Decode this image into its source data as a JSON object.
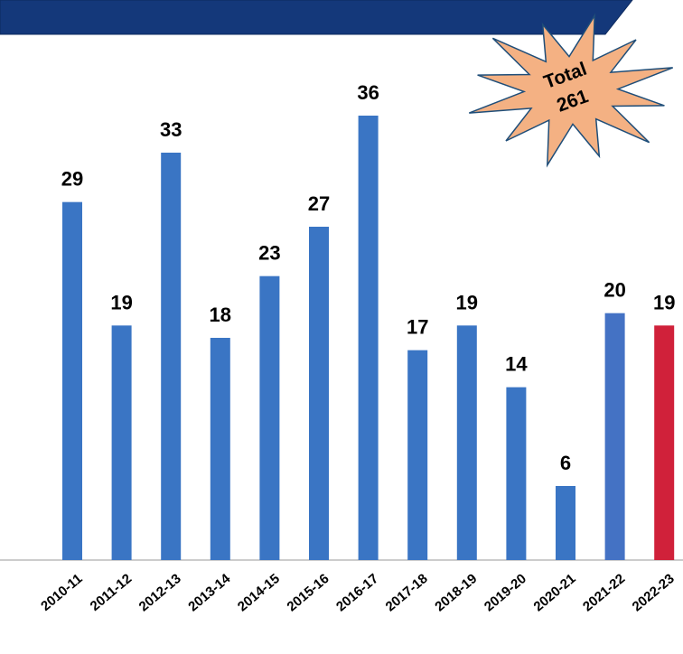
{
  "chart_data": {
    "type": "bar",
    "categories": [
      "2010-11",
      "2011-12",
      "2012-13",
      "2013-14",
      "2014-15",
      "2015-16",
      "2016-17",
      "2017-18",
      "2018-19",
      "2019-20",
      "2020-21",
      "2021-22",
      "2022-23"
    ],
    "values": [
      29,
      19,
      33,
      18,
      23,
      27,
      36,
      17,
      19,
      14,
      6,
      20,
      19
    ],
    "colors": [
      "#3a75c4",
      "#3a75c4",
      "#3a75c4",
      "#3a75c4",
      "#3a75c4",
      "#3a75c4",
      "#3a75c4",
      "#3a75c4",
      "#3a75c4",
      "#3a75c4",
      "#3a75c4",
      "#4472c4",
      "#d0213a"
    ],
    "annotation": {
      "label": "Total",
      "value": 261
    }
  }
}
